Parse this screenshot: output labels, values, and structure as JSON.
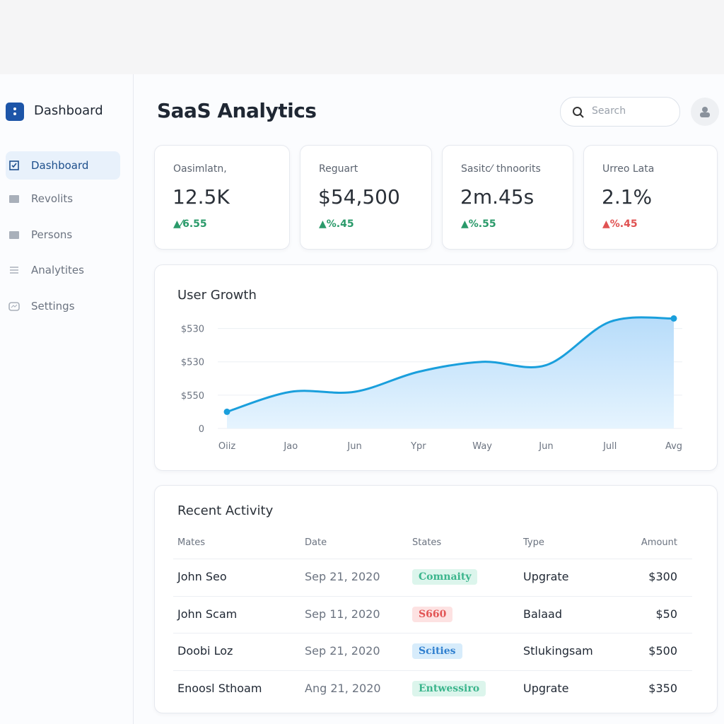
{
  "sidebar": {
    "brand": "Dashboard",
    "items": [
      "Dashboard",
      "Revolits",
      "Persons",
      "Analytites",
      "Settings"
    ]
  },
  "header": {
    "title": "SaaS Analytics",
    "search_placeholder": "Search"
  },
  "kpis": [
    {
      "label": "Oasimlatn,",
      "value": "12.5K",
      "change": "▲⁄6.55",
      "trend": "up"
    },
    {
      "label": "Reguart",
      "value": "$54,500",
      "change": "▲%.45",
      "trend": "up"
    },
    {
      "label": "Sasitc⁄  thnoorits",
      "value": "2m.45s",
      "change": "▲%.55",
      "trend": "up"
    },
    {
      "label": "Urreo Lata",
      "value": "2.1%",
      "change": "▲%.45",
      "trend": "down"
    }
  ],
  "chart_data": {
    "type": "line",
    "title": "User Growth",
    "categories": [
      "Oiiz",
      "Jao",
      "Jun",
      "Ypr",
      "Way",
      "Jun",
      "Jull",
      "Avg"
    ],
    "values": [
      0.5,
      1.1,
      1.1,
      1.7,
      2.0,
      1.9,
      3.2,
      3.3
    ],
    "color": "#1a9fdc",
    "area": true,
    "ylim": [
      0,
      3.5
    ],
    "yticks": [
      0,
      {
        "value": 1,
        "label": "$550"
      },
      {
        "value": 2,
        "label": "$530"
      },
      {
        "value": 3,
        "label": "$530"
      }
    ],
    "grid": true
  },
  "table": {
    "title": "Recent Activity",
    "columns": [
      "Mates",
      "Date",
      "States",
      "Type",
      "Amount"
    ],
    "rows": [
      [
        "John Seo",
        "Sep 21, 2020",
        "Comnaity",
        "Upgrate",
        "$300"
      ],
      [
        "John Scam",
        "Sep 11, 2020",
        "S660",
        "Balaad",
        "$50"
      ],
      [
        "Doobi Loz",
        "Sep 21, 2020",
        "Scities",
        "Stlukingsam",
        "$500"
      ],
      [
        "Enoosl Sthoam",
        "Ang 21, 2020",
        "Entwessiro",
        "Upgrate",
        "$350"
      ]
    ]
  }
}
